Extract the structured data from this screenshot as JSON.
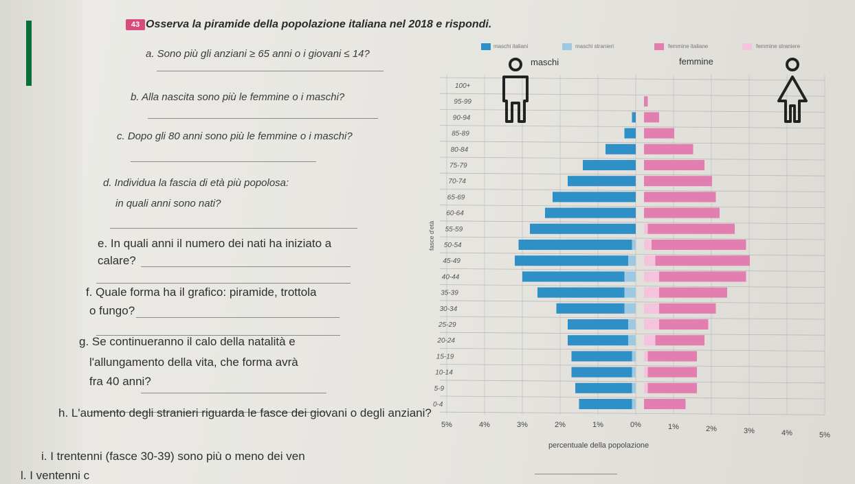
{
  "header": {
    "badge": "43",
    "title": "Osserva la piramide della popolazione italiana nel 2018 e rispondi."
  },
  "questions": [
    {
      "id": "a",
      "text": "a.  Sono più gli anziani ≥ 65 anni o i giovani ≤ 14?"
    },
    {
      "id": "b",
      "text": "b.  Alla nascita sono più le femmine o i maschi?"
    },
    {
      "id": "c",
      "text": "c.  Dopo gli 80 anni sono più le femmine o i maschi?"
    },
    {
      "id": "d1",
      "text": "d.  Individua la fascia di età più popolosa:"
    },
    {
      "id": "d2",
      "text": "in quali anni sono nati?"
    },
    {
      "id": "e1",
      "text": "e.  In quali anni il numero dei nati ha iniziato a"
    },
    {
      "id": "e2",
      "text": "calare?"
    },
    {
      "id": "f1",
      "text": "f.  Quale forma ha il grafico: piramide, trottola"
    },
    {
      "id": "f2",
      "text": "o fungo?"
    },
    {
      "id": "g1",
      "text": "g.  Se continueranno il calo della natalità e"
    },
    {
      "id": "g2",
      "text": "l'allungamento della vita, che forma avrà"
    },
    {
      "id": "g3",
      "text": "fra 40 anni?"
    },
    {
      "id": "h",
      "text": "h.  L'aumento degli stranieri riguarda le fasce dei giovani o degli anziani?"
    },
    {
      "id": "i",
      "text": "i.  I trentenni (fasce 30-39) sono più o meno dei ven"
    },
    {
      "id": "l",
      "text": "l.  I ventenni c"
    }
  ],
  "chart_data": {
    "type": "bar",
    "orientation": "horizontal-pyramid",
    "legend": {
      "maschi_italiani": "maschi italiani",
      "maschi_stranieri": "maschi stranieri",
      "femmine_italiane": "femmine italiane",
      "femmine_straniere": "femmine straniere"
    },
    "side_labels": {
      "left": "maschi",
      "right": "femmine"
    },
    "ylabel": "fasce d'età",
    "xlabel": "percentuale della popolazione",
    "x_ticks": [
      "5%",
      "4%",
      "3%",
      "2%",
      "1%",
      "0%",
      "1%",
      "2%",
      "3%",
      "4%",
      "5%"
    ],
    "categories": [
      "100+",
      "95-99",
      "90-94",
      "85-89",
      "80-84",
      "75-79",
      "70-74",
      "65-69",
      "60-64",
      "55-59",
      "50-54",
      "45-49",
      "40-44",
      "35-39",
      "30-34",
      "25-29",
      "20-24",
      "15-19",
      "10-14",
      "5-9",
      "0-4"
    ],
    "series": [
      {
        "name": "maschi italiani",
        "values": [
          0.0,
          0.0,
          0.1,
          0.3,
          0.8,
          1.4,
          1.8,
          2.2,
          2.4,
          2.8,
          3.0,
          3.0,
          2.7,
          2.3,
          1.8,
          1.6,
          1.6,
          1.6,
          1.6,
          1.5,
          1.4
        ]
      },
      {
        "name": "maschi stranieri",
        "values": [
          0.0,
          0.0,
          0.0,
          0.0,
          0.0,
          0.0,
          0.0,
          0.0,
          0.0,
          0.0,
          0.1,
          0.2,
          0.3,
          0.3,
          0.3,
          0.2,
          0.2,
          0.1,
          0.1,
          0.1,
          0.1
        ]
      },
      {
        "name": "femmine italiane",
        "values": [
          0.0,
          0.1,
          0.4,
          0.8,
          1.3,
          1.6,
          1.8,
          1.9,
          2.0,
          2.3,
          2.5,
          2.5,
          2.3,
          1.8,
          1.5,
          1.3,
          1.3,
          1.3,
          1.3,
          1.3,
          1.1
        ]
      },
      {
        "name": "femmine straniere",
        "values": [
          0.0,
          0.0,
          0.0,
          0.0,
          0.0,
          0.0,
          0.0,
          0.0,
          0.0,
          0.1,
          0.2,
          0.3,
          0.4,
          0.4,
          0.4,
          0.4,
          0.3,
          0.1,
          0.1,
          0.1,
          0.0
        ]
      }
    ],
    "xlim": [
      -5,
      5
    ],
    "colors": {
      "maschi_italiani": "#2f8fc7",
      "maschi_stranieri": "#9ec9e2",
      "femmine_italiane": "#e27fb0",
      "femmine_straniere": "#f3c4dc",
      "grid": "#b9b9b9",
      "icons": "#222222"
    },
    "grid": true
  }
}
